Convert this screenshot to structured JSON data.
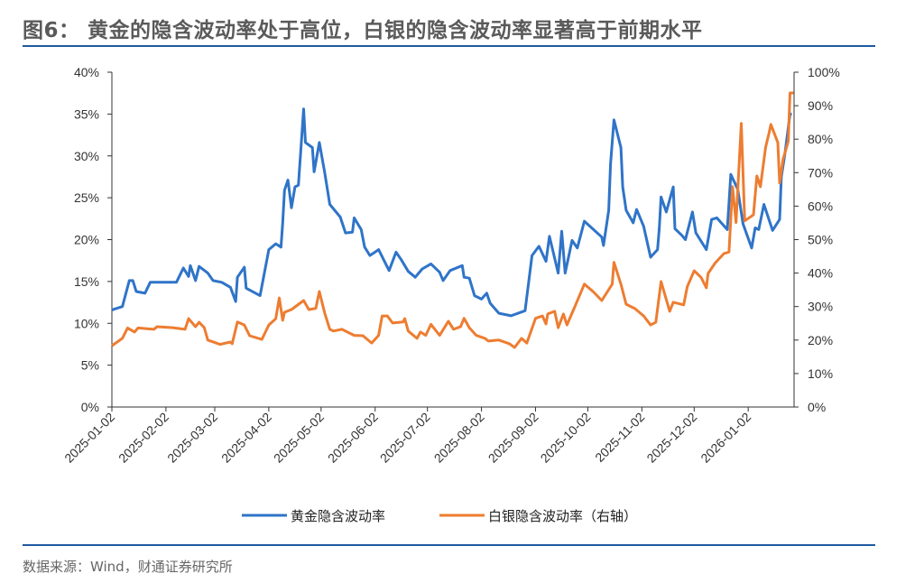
{
  "title": "图6： 黄金的隐含波动率处于高位，白银的隐含波动率显著高于前期水平",
  "source": "数据来源：Wind，财通证券研究所",
  "chart_data": {
    "type": "line",
    "title": "",
    "xlabel": "",
    "ylabel": "",
    "x_ticks": [
      "2025-01-02",
      "2025-02-02",
      "2025-03-02",
      "2025-04-02",
      "2025-05-02",
      "2025-06-02",
      "2025-07-02",
      "2025-08-02",
      "2025-09-02",
      "2025-10-02",
      "2025-11-02",
      "2025-12-02",
      "2026-01-02"
    ],
    "xlim": [
      "2025-01-02",
      "2026-01-28"
    ],
    "y_left": {
      "ticks": [
        "0%",
        "5%",
        "10%",
        "15%",
        "20%",
        "25%",
        "30%",
        "35%",
        "40%"
      ],
      "ylim": [
        0,
        40
      ]
    },
    "y_right": {
      "ticks": [
        "0%",
        "10%",
        "20%",
        "30%",
        "40%",
        "50%",
        "60%",
        "70%",
        "80%",
        "90%",
        "100%"
      ],
      "ylim": [
        0,
        100
      ]
    },
    "grid": false,
    "legend_position": "bottom",
    "series": [
      {
        "name": "黄金隐含波动率",
        "axis": "left",
        "color": "#2f74c8",
        "points": [
          [
            "2025-01-02",
            11.6
          ],
          [
            "2025-01-08",
            12.0
          ],
          [
            "2025-01-12",
            15.1
          ],
          [
            "2025-01-14",
            15.1
          ],
          [
            "2025-01-16",
            13.8
          ],
          [
            "2025-01-21",
            13.6
          ],
          [
            "2025-01-24",
            14.9
          ],
          [
            "2025-02-08",
            14.9
          ],
          [
            "2025-02-12",
            16.6
          ],
          [
            "2025-02-15",
            15.6
          ],
          [
            "2025-02-16",
            16.9
          ],
          [
            "2025-02-19",
            15.1
          ],
          [
            "2025-02-21",
            16.8
          ],
          [
            "2025-02-26",
            16.0
          ],
          [
            "2025-03-01",
            15.1
          ],
          [
            "2025-03-06",
            14.9
          ],
          [
            "2025-03-11",
            14.3
          ],
          [
            "2025-03-14",
            12.6
          ],
          [
            "2025-03-15",
            15.5
          ],
          [
            "2025-03-19",
            16.7
          ],
          [
            "2025-03-20",
            14.2
          ],
          [
            "2025-03-28",
            13.3
          ],
          [
            "2025-03-30",
            15.5
          ],
          [
            "2025-04-02",
            18.8
          ],
          [
            "2025-04-06",
            19.5
          ],
          [
            "2025-04-09",
            19.1
          ],
          [
            "2025-04-10",
            22.0
          ],
          [
            "2025-04-11",
            25.9
          ],
          [
            "2025-04-13",
            27.1
          ],
          [
            "2025-04-15",
            23.8
          ],
          [
            "2025-04-17",
            26.3
          ],
          [
            "2025-04-19",
            26.5
          ],
          [
            "2025-04-22",
            35.6
          ],
          [
            "2025-04-23",
            31.6
          ],
          [
            "2025-04-27",
            31.0
          ],
          [
            "2025-04-28",
            28.1
          ],
          [
            "2025-05-01",
            31.6
          ],
          [
            "2025-05-04",
            28.1
          ],
          [
            "2025-05-07",
            24.2
          ],
          [
            "2025-05-13",
            22.7
          ],
          [
            "2025-05-16",
            20.8
          ],
          [
            "2025-05-20",
            20.9
          ],
          [
            "2025-05-21",
            22.6
          ],
          [
            "2025-05-25",
            21.2
          ],
          [
            "2025-05-27",
            19.1
          ],
          [
            "2025-05-30",
            18.1
          ],
          [
            "2025-06-04",
            18.8
          ],
          [
            "2025-06-10",
            16.3
          ],
          [
            "2025-06-14",
            18.5
          ],
          [
            "2025-06-17",
            17.6
          ],
          [
            "2025-06-21",
            16.2
          ],
          [
            "2025-06-25",
            15.5
          ],
          [
            "2025-06-29",
            16.5
          ],
          [
            "2025-07-04",
            17.1
          ],
          [
            "2025-07-09",
            16.1
          ],
          [
            "2025-07-11",
            15.1
          ],
          [
            "2025-07-15",
            16.3
          ],
          [
            "2025-07-22",
            16.9
          ],
          [
            "2025-07-23",
            15.5
          ],
          [
            "2025-07-26",
            15.4
          ],
          [
            "2025-07-29",
            13.3
          ],
          [
            "2025-08-02",
            12.9
          ],
          [
            "2025-08-05",
            13.6
          ],
          [
            "2025-08-07",
            12.4
          ],
          [
            "2025-08-12",
            11.2
          ],
          [
            "2025-08-19",
            10.9
          ],
          [
            "2025-08-27",
            11.5
          ],
          [
            "2025-08-31",
            18.1
          ],
          [
            "2025-09-04",
            19.2
          ],
          [
            "2025-09-08",
            17.4
          ],
          [
            "2025-09-10",
            20.4
          ],
          [
            "2025-09-15",
            16.0
          ],
          [
            "2025-09-17",
            21.0
          ],
          [
            "2025-09-19",
            16.0
          ],
          [
            "2025-09-23",
            19.9
          ],
          [
            "2025-09-26",
            19.0
          ],
          [
            "2025-09-30",
            22.2
          ],
          [
            "2025-10-10",
            20.3
          ],
          [
            "2025-10-11",
            19.3
          ],
          [
            "2025-10-14",
            23.5
          ],
          [
            "2025-10-15",
            29.0
          ],
          [
            "2025-10-17",
            34.3
          ],
          [
            "2025-10-21",
            31.0
          ],
          [
            "2025-10-22",
            26.3
          ],
          [
            "2025-10-24",
            23.5
          ],
          [
            "2025-10-28",
            22.0
          ],
          [
            "2025-10-30",
            23.6
          ],
          [
            "2025-11-03",
            21.6
          ],
          [
            "2025-11-07",
            17.9
          ],
          [
            "2025-11-11",
            18.8
          ],
          [
            "2025-11-12",
            21.3
          ],
          [
            "2025-11-13",
            25.1
          ],
          [
            "2025-11-16",
            23.3
          ],
          [
            "2025-11-20",
            26.3
          ],
          [
            "2025-11-21",
            21.3
          ],
          [
            "2025-11-25",
            20.5
          ],
          [
            "2025-11-27",
            20.0
          ],
          [
            "2025-12-01",
            23.3
          ],
          [
            "2025-12-03",
            20.8
          ],
          [
            "2025-12-09",
            18.8
          ],
          [
            "2025-12-12",
            22.4
          ],
          [
            "2025-12-15",
            22.6
          ],
          [
            "2025-12-21",
            21.2
          ],
          [
            "2025-12-23",
            27.8
          ],
          [
            "2025-12-27",
            26.0
          ],
          [
            "2025-12-30",
            21.9
          ],
          [
            "2026-01-04",
            19.0
          ],
          [
            "2026-01-06",
            21.4
          ],
          [
            "2026-01-08",
            21.2
          ],
          [
            "2026-01-11",
            24.2
          ],
          [
            "2026-01-16",
            21.1
          ],
          [
            "2026-01-20",
            22.4
          ],
          [
            "2026-01-21",
            27.5
          ],
          [
            "2026-01-23",
            30.2
          ],
          [
            "2026-01-26",
            35.0
          ],
          [
            "2026-01-27",
            35.0
          ]
        ]
      },
      {
        "name": "白银隐含波动率（右轴）",
        "axis": "right",
        "color": "#ed7d31",
        "points": [
          [
            "2025-01-02",
            18.3
          ],
          [
            "2025-01-08",
            20.5
          ],
          [
            "2025-01-11",
            23.6
          ],
          [
            "2025-01-15",
            22.4
          ],
          [
            "2025-01-17",
            23.6
          ],
          [
            "2025-01-26",
            23.2
          ],
          [
            "2025-01-28",
            24.0
          ],
          [
            "2025-02-06",
            23.7
          ],
          [
            "2025-02-13",
            23.2
          ],
          [
            "2025-02-15",
            26.4
          ],
          [
            "2025-02-19",
            24.0
          ],
          [
            "2025-02-21",
            25.3
          ],
          [
            "2025-02-24",
            23.7
          ],
          [
            "2025-02-26",
            20.0
          ],
          [
            "2025-03-05",
            18.7
          ],
          [
            "2025-03-11",
            19.4
          ],
          [
            "2025-03-12",
            18.9
          ],
          [
            "2025-03-15",
            25.4
          ],
          [
            "2025-03-19",
            24.5
          ],
          [
            "2025-03-22",
            21.3
          ],
          [
            "2025-03-29",
            20.2
          ],
          [
            "2025-04-02",
            24.5
          ],
          [
            "2025-04-06",
            26.4
          ],
          [
            "2025-04-08",
            32.6
          ],
          [
            "2025-04-10",
            25.9
          ],
          [
            "2025-04-11",
            28.3
          ],
          [
            "2025-04-15",
            29.1
          ],
          [
            "2025-04-22",
            31.8
          ],
          [
            "2025-04-25",
            29.1
          ],
          [
            "2025-04-29",
            29.5
          ],
          [
            "2025-05-01",
            34.5
          ],
          [
            "2025-05-04",
            28.2
          ],
          [
            "2025-05-07",
            23.2
          ],
          [
            "2025-05-09",
            22.7
          ],
          [
            "2025-05-14",
            23.2
          ],
          [
            "2025-05-21",
            21.4
          ],
          [
            "2025-05-26",
            21.3
          ],
          [
            "2025-05-31",
            19.1
          ],
          [
            "2025-06-04",
            21.4
          ],
          [
            "2025-06-06",
            27.2
          ],
          [
            "2025-06-09",
            27.2
          ],
          [
            "2025-06-12",
            25.1
          ],
          [
            "2025-06-18",
            25.4
          ],
          [
            "2025-06-19",
            26.4
          ],
          [
            "2025-06-21",
            22.7
          ],
          [
            "2025-06-26",
            20.5
          ],
          [
            "2025-06-28",
            22.4
          ],
          [
            "2025-07-01",
            21.4
          ],
          [
            "2025-07-04",
            24.7
          ],
          [
            "2025-07-09",
            21.4
          ],
          [
            "2025-07-14",
            25.6
          ],
          [
            "2025-07-17",
            23.2
          ],
          [
            "2025-07-21",
            24.0
          ],
          [
            "2025-07-23",
            26.5
          ],
          [
            "2025-07-26",
            23.7
          ],
          [
            "2025-07-30",
            21.4
          ],
          [
            "2025-08-04",
            20.5
          ],
          [
            "2025-08-06",
            19.7
          ],
          [
            "2025-08-12",
            20.0
          ],
          [
            "2025-08-18",
            18.9
          ],
          [
            "2025-08-21",
            17.8
          ],
          [
            "2025-08-25",
            20.5
          ],
          [
            "2025-08-28",
            19.1
          ],
          [
            "2025-09-02",
            26.5
          ],
          [
            "2025-09-06",
            27.2
          ],
          [
            "2025-09-08",
            24.8
          ],
          [
            "2025-09-09",
            27.8
          ],
          [
            "2025-09-13",
            28.6
          ],
          [
            "2025-09-15",
            23.7
          ],
          [
            "2025-09-18",
            27.8
          ],
          [
            "2025-09-20",
            24.5
          ],
          [
            "2025-09-25",
            30.5
          ],
          [
            "2025-09-30",
            36.7
          ],
          [
            "2025-10-05",
            34.5
          ],
          [
            "2025-10-10",
            31.8
          ],
          [
            "2025-10-16",
            36.7
          ],
          [
            "2025-10-17",
            43.2
          ],
          [
            "2025-10-21",
            36.7
          ],
          [
            "2025-10-24",
            30.7
          ],
          [
            "2025-10-29",
            29.4
          ],
          [
            "2025-11-03",
            27.2
          ],
          [
            "2025-11-07",
            24.5
          ],
          [
            "2025-11-10",
            25.3
          ],
          [
            "2025-11-13",
            37.5
          ],
          [
            "2025-11-18",
            28.6
          ],
          [
            "2025-11-20",
            31.3
          ],
          [
            "2025-11-26",
            30.5
          ],
          [
            "2025-11-28",
            35.9
          ],
          [
            "2025-12-02",
            40.7
          ],
          [
            "2025-12-06",
            38.7
          ],
          [
            "2025-12-09",
            35.6
          ],
          [
            "2025-12-10",
            39.9
          ],
          [
            "2025-12-14",
            43.0
          ],
          [
            "2025-12-19",
            45.8
          ],
          [
            "2025-12-22",
            46.3
          ],
          [
            "2025-12-24",
            65.8
          ],
          [
            "2025-12-26",
            55.1
          ],
          [
            "2025-12-29",
            84.7
          ],
          [
            "2025-12-31",
            55.6
          ],
          [
            "2026-01-05",
            57.4
          ],
          [
            "2026-01-07",
            69.0
          ],
          [
            "2026-01-09",
            65.8
          ],
          [
            "2026-01-12",
            77.6
          ],
          [
            "2026-01-14",
            82.0
          ],
          [
            "2026-01-15",
            84.4
          ],
          [
            "2026-01-19",
            79.0
          ],
          [
            "2026-01-20",
            66.9
          ],
          [
            "2026-01-22",
            74.0
          ],
          [
            "2026-01-25",
            79.4
          ],
          [
            "2026-01-26",
            93.8
          ],
          [
            "2026-01-28",
            93.8
          ]
        ]
      }
    ]
  }
}
